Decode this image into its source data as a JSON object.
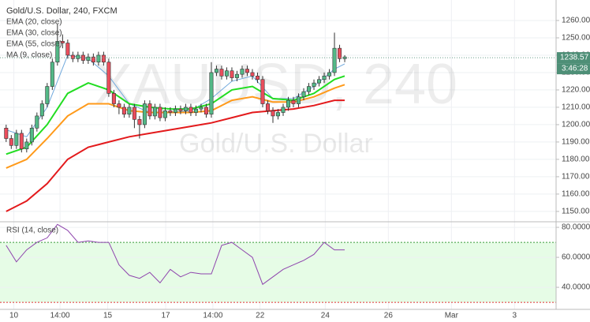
{
  "chart_data": {
    "type": "candlestick",
    "title": "Gold/U.S. Dollar, 240, FXCM",
    "watermark": "XAUUSD, 240",
    "watermark_subtitle": "Gold/U.S. Dollar",
    "x": [
      0,
      1,
      2,
      3,
      4,
      5,
      6,
      7,
      8,
      9,
      10,
      11,
      12,
      13,
      14,
      15,
      16,
      17,
      18,
      19,
      20,
      21,
      22,
      23,
      24,
      25,
      26,
      27,
      28,
      29,
      30,
      31,
      32,
      33,
      34,
      35,
      36,
      37,
      38,
      39,
      40,
      41,
      42,
      43,
      44,
      45,
      46,
      47,
      48,
      49,
      50,
      51,
      52,
      53,
      54,
      55,
      56,
      57,
      58,
      59,
      60,
      61,
      62,
      63,
      64,
      65,
      66
    ],
    "open": [
      1198,
      1192,
      1188,
      1195,
      1186,
      1190,
      1198,
      1205,
      1212,
      1222,
      1236,
      1248,
      1247,
      1240,
      1238,
      1240,
      1237,
      1239,
      1236,
      1240,
      1236,
      1218,
      1212,
      1210,
      1206,
      1210,
      1203,
      1200,
      1212,
      1205,
      1210,
      1204,
      1208,
      1207,
      1209,
      1208,
      1210,
      1207,
      1209,
      1210,
      1206,
      1230,
      1232,
      1228,
      1231,
      1227,
      1229,
      1232,
      1230,
      1228,
      1226,
      1212,
      1208,
      1205,
      1207,
      1210,
      1214,
      1212,
      1216,
      1219,
      1222,
      1224,
      1226,
      1228,
      1230,
      1244,
      1238
    ],
    "high": [
      1200,
      1194,
      1197,
      1197,
      1192,
      1200,
      1207,
      1214,
      1224,
      1238,
      1258,
      1252,
      1249,
      1242,
      1242,
      1242,
      1241,
      1241,
      1242,
      1242,
      1238,
      1220,
      1214,
      1212,
      1212,
      1212,
      1205,
      1214,
      1214,
      1212,
      1212,
      1210,
      1210,
      1211,
      1211,
      1212,
      1212,
      1211,
      1212,
      1212,
      1236,
      1234,
      1234,
      1233,
      1233,
      1231,
      1234,
      1234,
      1232,
      1230,
      1228,
      1214,
      1210,
      1209,
      1212,
      1216,
      1216,
      1218,
      1221,
      1224,
      1226,
      1228,
      1230,
      1232,
      1253,
      1246,
      1240
    ],
    "low": [
      1190,
      1186,
      1186,
      1184,
      1184,
      1188,
      1196,
      1203,
      1210,
      1220,
      1234,
      1244,
      1238,
      1236,
      1236,
      1235,
      1235,
      1234,
      1234,
      1234,
      1216,
      1210,
      1206,
      1204,
      1204,
      1198,
      1192,
      1198,
      1203,
      1203,
      1202,
      1202,
      1205,
      1205,
      1206,
      1206,
      1205,
      1205,
      1207,
      1204,
      1204,
      1228,
      1226,
      1226,
      1225,
      1225,
      1227,
      1228,
      1226,
      1224,
      1210,
      1206,
      1201,
      1203,
      1205,
      1208,
      1210,
      1210,
      1214,
      1217,
      1220,
      1222,
      1224,
      1226,
      1228,
      1236,
      1236
    ],
    "close": [
      1192,
      1188,
      1195,
      1186,
      1190,
      1198,
      1205,
      1212,
      1222,
      1236,
      1248,
      1247,
      1240,
      1238,
      1240,
      1237,
      1239,
      1236,
      1240,
      1236,
      1218,
      1212,
      1210,
      1206,
      1210,
      1203,
      1200,
      1212,
      1205,
      1210,
      1204,
      1208,
      1207,
      1209,
      1208,
      1210,
      1207,
      1209,
      1210,
      1206,
      1230,
      1232,
      1228,
      1231,
      1227,
      1229,
      1232,
      1230,
      1228,
      1226,
      1212,
      1208,
      1205,
      1207,
      1210,
      1214,
      1212,
      1216,
      1219,
      1222,
      1224,
      1226,
      1228,
      1230,
      1244,
      1238,
      1239
    ],
    "up_color": "#53b987",
    "down_color": "#eb4d5c",
    "indicators": [
      {
        "name": "EMA (20, close)",
        "color": "#6fa8dc",
        "x": [
          0,
          4,
          8,
          12,
          16,
          20,
          24,
          28,
          32,
          36,
          40,
          44,
          48,
          52,
          56,
          60,
          64,
          66
        ],
        "values": [
          1197,
          1193,
          1210,
          1240,
          1238,
          1228,
          1212,
          1207,
          1207,
          1208,
          1215,
          1225,
          1228,
          1215,
          1215,
          1222,
          1232,
          1235
        ]
      },
      {
        "name": "EMA (30, close)",
        "color": "#22dd22",
        "x": [
          0,
          4,
          8,
          12,
          16,
          20,
          24,
          28,
          32,
          36,
          40,
          44,
          48,
          52,
          56,
          60,
          64,
          66
        ],
        "values": [
          1183,
          1187,
          1200,
          1218,
          1224,
          1220,
          1212,
          1210,
          1209,
          1209,
          1212,
          1220,
          1222,
          1215,
          1214,
          1218,
          1226,
          1228
        ]
      },
      {
        "name": "EMA (55, close)",
        "color": "#ff9a1a",
        "x": [
          0,
          4,
          8,
          12,
          16,
          20,
          24,
          28,
          32,
          36,
          40,
          44,
          48,
          52,
          56,
          60,
          64,
          66
        ],
        "values": [
          1175,
          1180,
          1192,
          1205,
          1212,
          1212,
          1208,
          1207,
          1207,
          1207,
          1208,
          1214,
          1216,
          1213,
          1213,
          1216,
          1221,
          1223
        ]
      },
      {
        "name": "MA (9, close)",
        "color": "#e31a1c",
        "x": [
          0,
          4,
          8,
          12,
          16,
          20,
          24,
          28,
          32,
          36,
          40,
          44,
          48,
          52,
          56,
          60,
          64,
          66
        ],
        "values": [
          1150,
          1156,
          1166,
          1180,
          1187,
          1190,
          1193,
          1195,
          1197,
          1199,
          1201,
          1204,
          1207,
          1208,
          1209,
          1211,
          1214,
          1214
        ]
      }
    ],
    "last_price": {
      "value": 1238.57,
      "label": "1238.57"
    },
    "countdown": "3:46:28",
    "xlim": [
      -1.2,
      107.2
    ],
    "xticks": [
      {
        "value": 1.5,
        "label": "10"
      },
      {
        "value": 10.5,
        "label": "14:00"
      },
      {
        "value": 19.8,
        "label": "15"
      },
      {
        "value": 31.1,
        "label": "17"
      },
      {
        "value": 40.3,
        "label": "14:00"
      },
      {
        "value": 49.5,
        "label": "22"
      },
      {
        "value": 62.2,
        "label": "24"
      },
      {
        "value": 74.5,
        "label": "26"
      },
      {
        "value": 86.8,
        "label": "Mar"
      },
      {
        "value": 99.1,
        "label": "3"
      }
    ],
    "ylim": [
      1144.5,
      1271.8
    ],
    "yticks": [
      {
        "value": 1150,
        "label": "1150.00"
      },
      {
        "value": 1160,
        "label": "1160.00"
      },
      {
        "value": 1170,
        "label": "1170.00"
      },
      {
        "value": 1180,
        "label": "1180.00"
      },
      {
        "value": 1190,
        "label": "1190.00"
      },
      {
        "value": 1200,
        "label": "1200.00"
      },
      {
        "value": 1210,
        "label": "1210.00"
      },
      {
        "value": 1220,
        "label": "1220.00"
      },
      {
        "value": 1230,
        "label": "1230.00"
      },
      {
        "value": 1240,
        "label": "1240.00"
      },
      {
        "value": 1250,
        "label": "1250.00"
      },
      {
        "value": 1260,
        "label": "1260.00"
      }
    ],
    "grid": true,
    "rsi": {
      "name": "RSI (14, close)",
      "color": "#8e44ad",
      "x": [
        0,
        2,
        4,
        6,
        8,
        10,
        12,
        14,
        16,
        18,
        20,
        22,
        24,
        26,
        28,
        30,
        32,
        34,
        36,
        38,
        40,
        42,
        44,
        46,
        48,
        50,
        52,
        54,
        56,
        58,
        60,
        62,
        64,
        66
      ],
      "values": [
        68,
        57,
        65,
        70,
        73,
        82,
        78,
        70,
        71,
        70,
        70,
        55,
        48,
        46,
        50,
        43,
        52,
        47,
        50,
        49,
        49,
        68,
        70,
        65,
        60,
        42,
        47,
        52,
        55,
        58,
        62,
        70,
        65,
        65
      ],
      "bands": [
        30,
        70
      ],
      "band_fill": "#e6fce6",
      "ylim": [
        25.3,
        83.2
      ],
      "yticks": [
        {
          "value": 40,
          "label": "40.00000"
        },
        {
          "value": 60,
          "label": "60.00000"
        },
        {
          "value": 80,
          "label": "80.00000"
        }
      ]
    }
  }
}
